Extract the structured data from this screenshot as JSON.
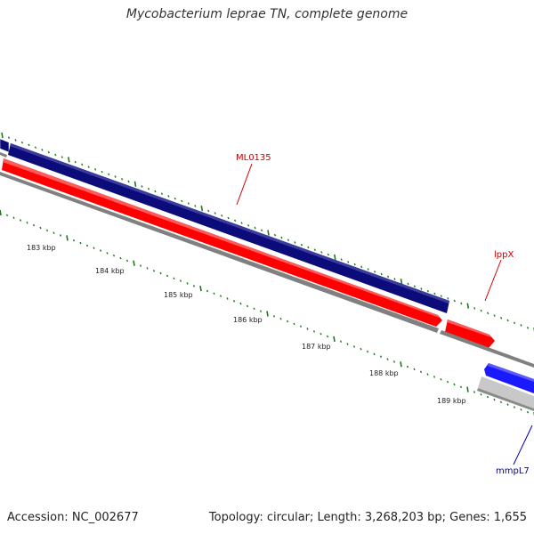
{
  "title": "Mycobacterium leprae TN, complete genome",
  "footer": {
    "accession": "Accession: NC_002677",
    "summary": "Topology: circular; Length: 3,268,203 bp; Genes: 1,655"
  },
  "colors": {
    "forward_gene": "#0b0b7a",
    "reverse_gene": "#ff0000",
    "blue_gene": "#1a1aff",
    "grey_gene": "#c8c8c8",
    "backbone": "#808080",
    "tick": "#1a7a1a",
    "label_red": "#cc0000",
    "label_blue": "#0000aa"
  },
  "scale": {
    "tick_labels": [
      "183 kbp",
      "184 kbp",
      "185 kbp",
      "186 kbp",
      "187 kbp",
      "188 kbp",
      "189 kbp"
    ]
  },
  "genes": {
    "ml0135": "ML0135",
    "lppx": "lppX",
    "mmpl7": "mmpL7"
  }
}
